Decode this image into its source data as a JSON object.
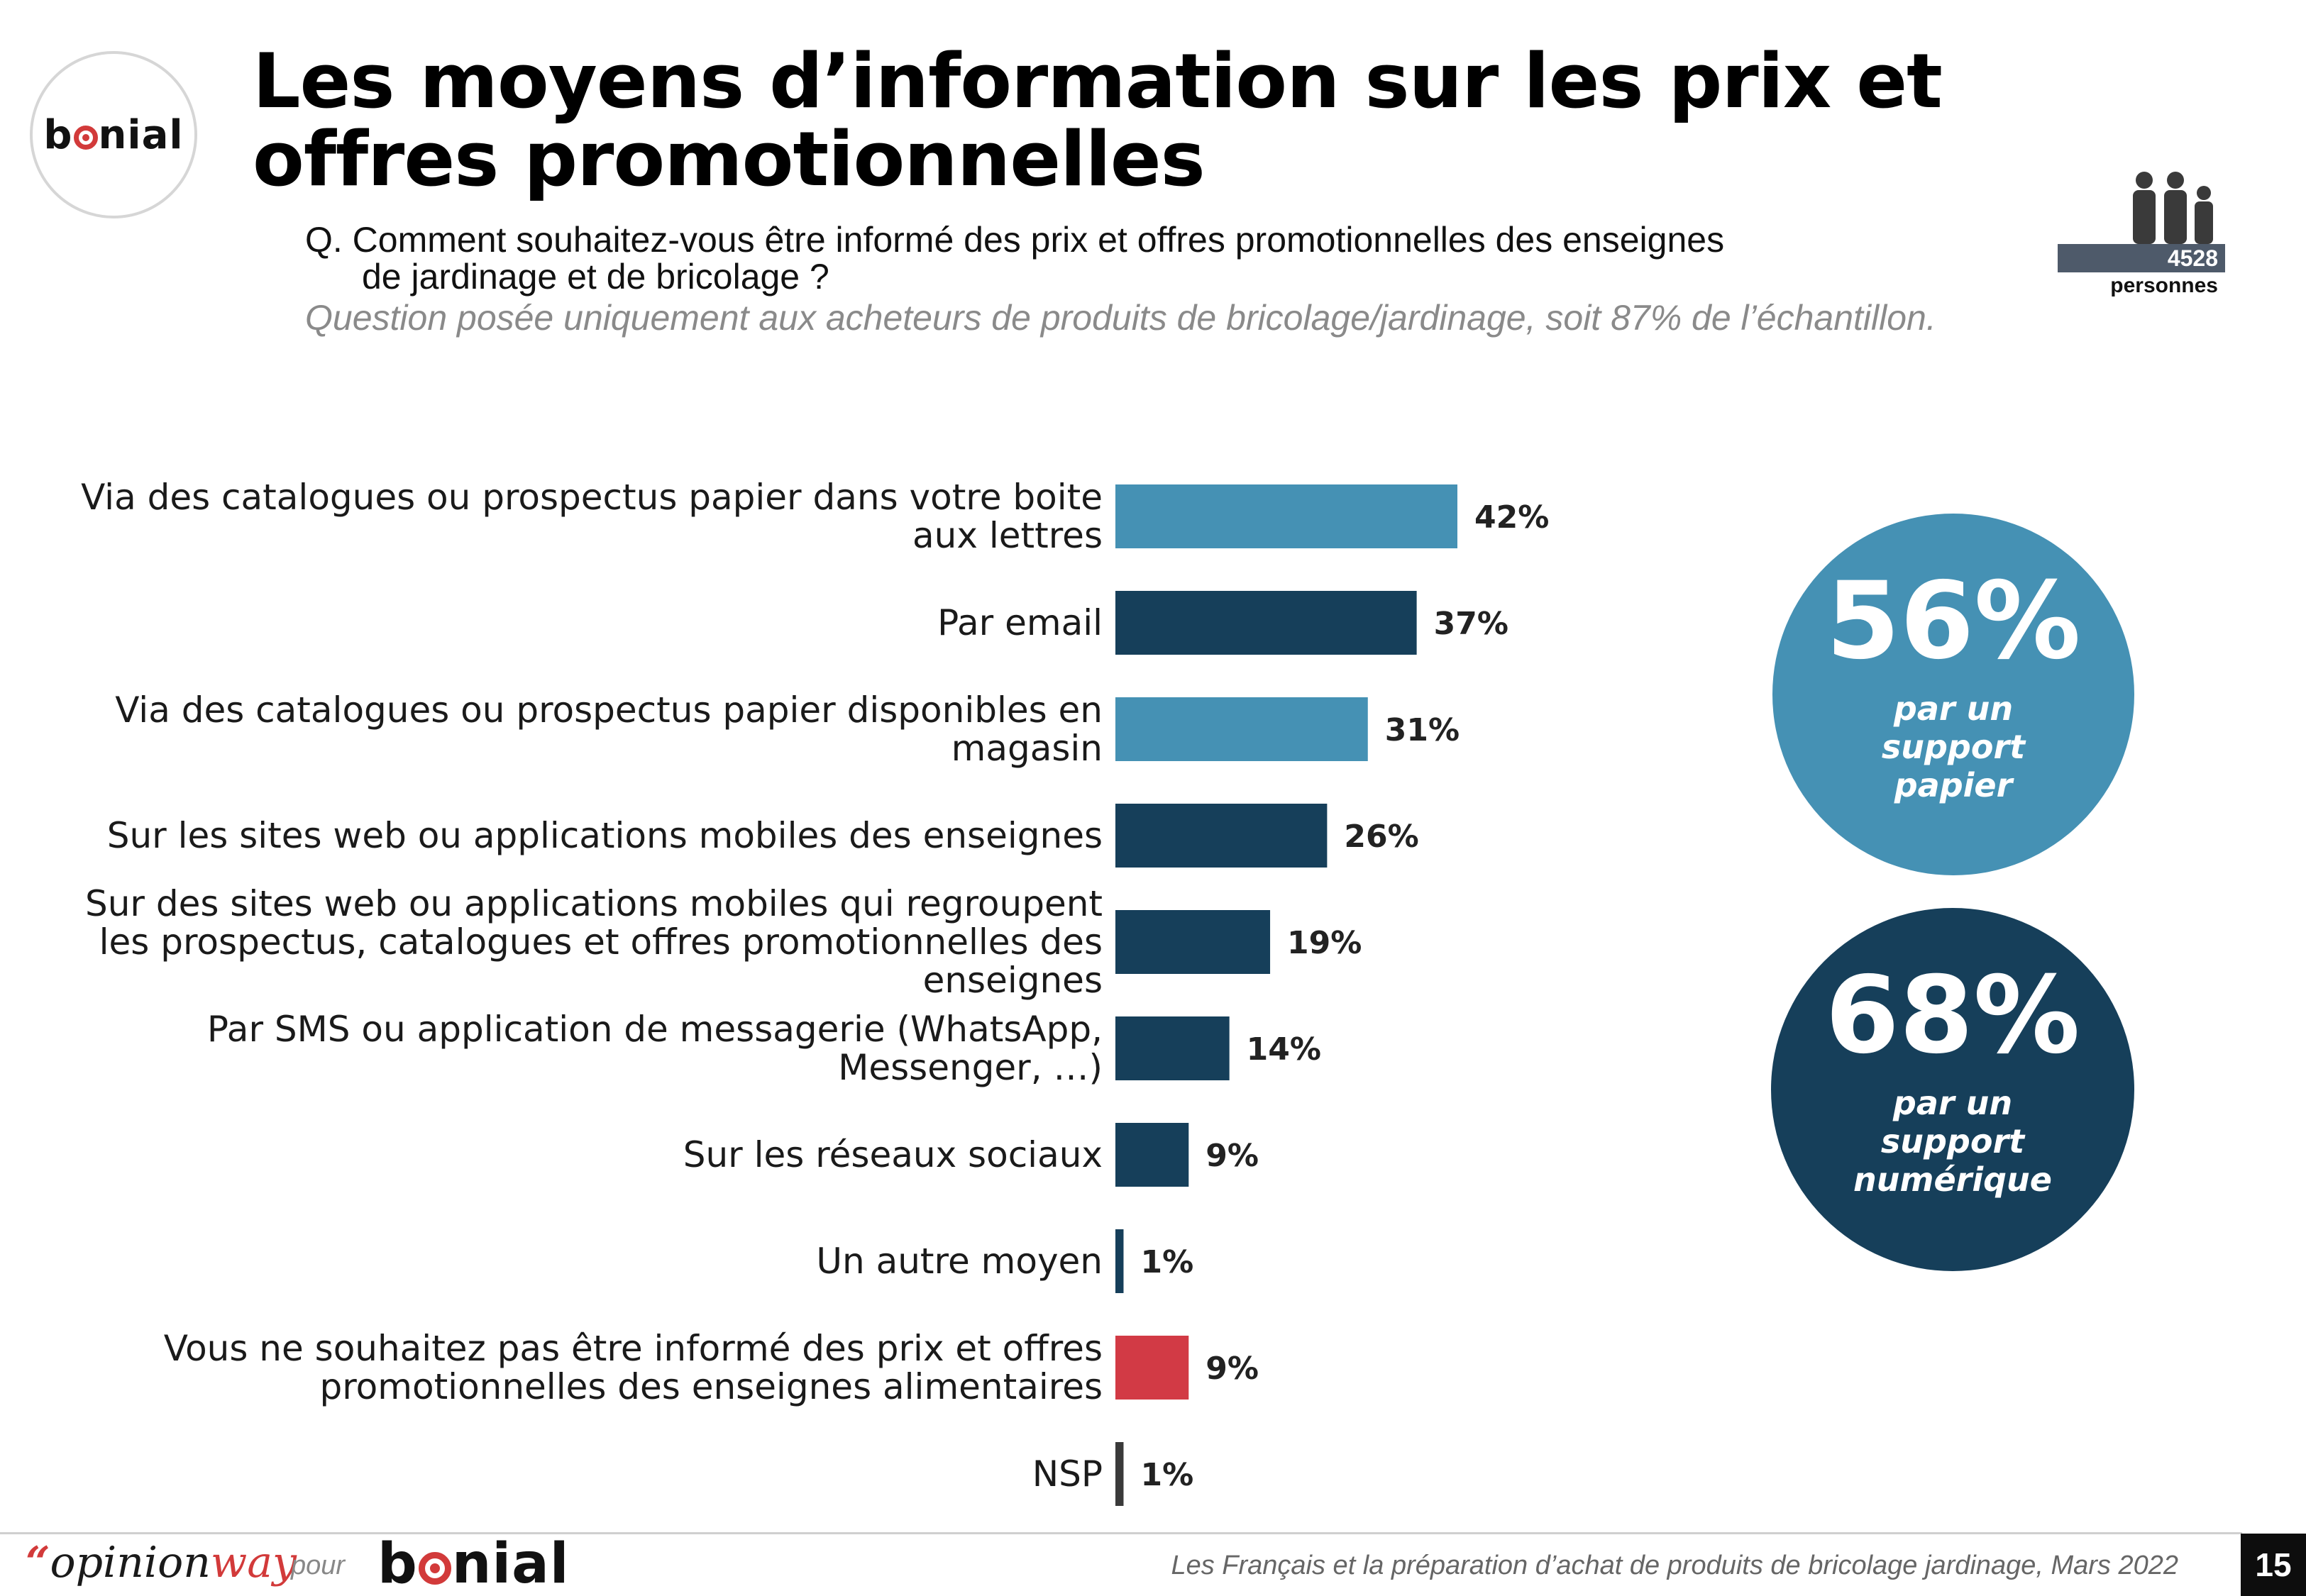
{
  "header": {
    "brand_name": "bonial",
    "title": "Les moyens d’information sur les prix et offres promotionnelles",
    "question_line1": "Q. Comment souhaitez-vous être informé des prix et offres promotionnelles des enseignes",
    "question_line2": "de jardinage et de bricolage ?",
    "note": "Question posée uniquement aux acheteurs de produits de bricolage/jardinage, soit 87% de l’échantillon."
  },
  "sample": {
    "count": "4528",
    "label": "personnes",
    "icon": "people-group-icon"
  },
  "chart_data": {
    "type": "bar",
    "orientation": "horizontal",
    "title": "",
    "xlabel": "",
    "ylabel": "",
    "xlim": [
      0,
      42
    ],
    "categories": [
      "Via des catalogues ou prospectus papier dans votre boite aux lettres",
      "Par email",
      "Via des catalogues ou prospectus papier disponibles en magasin",
      "Sur les sites web ou applications mobiles des enseignes",
      "Sur des sites web ou applications mobiles qui regroupent les prospectus, catalogues et offres promotionnelles des enseignes",
      "Par SMS ou application de messagerie (WhatsApp, Messenger, …)",
      "Sur les réseaux sociaux",
      "Un autre moyen",
      "Vous ne souhaitez pas être informé des prix et offres promotionnelles des enseignes alimentaires",
      "NSP"
    ],
    "category_lines": [
      [
        "Via des catalogues ou prospectus papier dans votre boite",
        "aux lettres"
      ],
      [
        "Par email"
      ],
      [
        "Via des catalogues ou prospectus papier disponibles en",
        "magasin"
      ],
      [
        "Sur les sites web ou applications mobiles des enseignes"
      ],
      [
        "Sur des sites web ou applications mobiles qui regroupent",
        "les prospectus, catalogues et offres promotionnelles des",
        "enseignes"
      ],
      [
        "Par SMS ou application de messagerie (WhatsApp,",
        "Messenger, …)"
      ],
      [
        "Sur les réseaux sociaux"
      ],
      [
        "Un autre moyen"
      ],
      [
        "Vous ne souhaitez pas être informé des prix et offres",
        "promotionnelles des enseignes alimentaires"
      ],
      [
        "NSP"
      ]
    ],
    "values": [
      42,
      37,
      31,
      26,
      19,
      14,
      9,
      1,
      9,
      1
    ],
    "value_labels": [
      "42%",
      "37%",
      "31%",
      "26%",
      "19%",
      "14%",
      "9%",
      "1%",
      "9%",
      "1%"
    ],
    "bar_colors": [
      "#4591b4",
      "#163f5a",
      "#4591b4",
      "#163f5a",
      "#163f5a",
      "#163f5a",
      "#163f5a",
      "#163f5a",
      "#d23a45",
      "#3a3a3a"
    ],
    "grid": false
  },
  "summary": {
    "paper": {
      "value": "56%",
      "label": "par un support papier",
      "color": "#4591b4"
    },
    "digital": {
      "value": "68%",
      "label": "par un support numérique",
      "color": "#163f5a"
    }
  },
  "footer": {
    "opinionway_quote": "“",
    "opinionway_opinion": "opinion",
    "opinionway_way": "way",
    "pour": "pour",
    "brand_name": "bonial",
    "source": "Les Français et la préparation d’achat de produits de bricolage jardinage, Mars 2022",
    "page": "15"
  }
}
